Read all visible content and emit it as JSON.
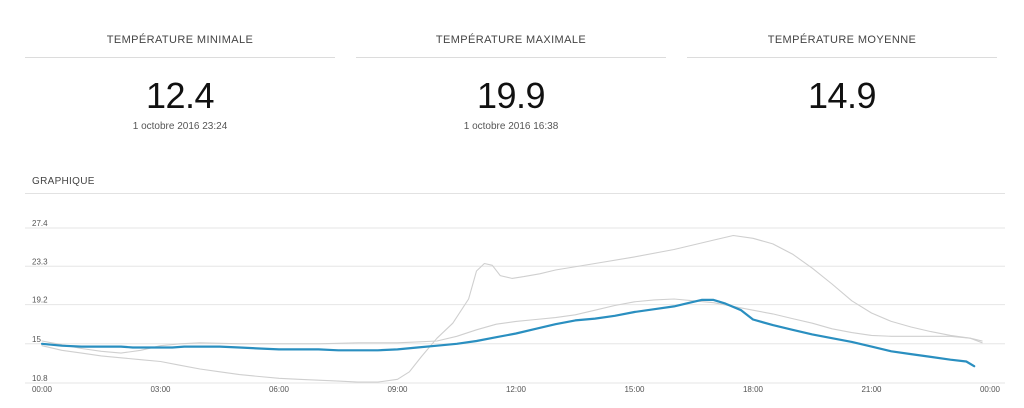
{
  "stats": [
    {
      "label": "TEMPÉRATURE MINIMALE",
      "value": "12.4",
      "date": "1 octobre 2016 23:24"
    },
    {
      "label": "TEMPÉRATURE MAXIMALE",
      "value": "19.9",
      "date": "1 octobre 2016 16:38"
    },
    {
      "label": "TEMPÉRATURE MOYENNE",
      "value": "14.9",
      "date": ""
    }
  ],
  "chart_section": {
    "title": "GRAPHIQUE"
  },
  "chart_data": {
    "type": "line",
    "ylim": [
      10.8,
      27.4
    ],
    "y_ticks": [
      "10.8",
      "15",
      "19.2",
      "23.3",
      "27.4"
    ],
    "x_ticks": [
      "00:00",
      "03:00",
      "06:00",
      "09:00",
      "12:00",
      "15:00",
      "18:00",
      "21:00",
      "00:00"
    ],
    "grid": true,
    "colors": {
      "primary": "#2a8fc0",
      "secondary": "#cfcfcf"
    },
    "series": [
      {
        "role": "current",
        "points": [
          [
            0.0,
            15.0
          ],
          [
            0.5,
            14.8
          ],
          [
            1.0,
            14.7
          ],
          [
            1.5,
            14.7
          ],
          [
            2.0,
            14.7
          ],
          [
            2.3,
            14.6
          ],
          [
            2.8,
            14.6
          ],
          [
            3.3,
            14.6
          ],
          [
            3.6,
            14.7
          ],
          [
            4.0,
            14.7
          ],
          [
            4.5,
            14.7
          ],
          [
            5.0,
            14.6
          ],
          [
            5.5,
            14.5
          ],
          [
            6.0,
            14.4
          ],
          [
            6.5,
            14.4
          ],
          [
            7.0,
            14.4
          ],
          [
            7.5,
            14.3
          ],
          [
            8.0,
            14.3
          ],
          [
            8.5,
            14.3
          ],
          [
            9.0,
            14.4
          ],
          [
            9.5,
            14.6
          ],
          [
            10.0,
            14.8
          ],
          [
            10.5,
            15.0
          ],
          [
            11.0,
            15.3
          ],
          [
            11.5,
            15.7
          ],
          [
            12.0,
            16.1
          ],
          [
            12.5,
            16.6
          ],
          [
            13.0,
            17.1
          ],
          [
            13.5,
            17.5
          ],
          [
            14.0,
            17.7
          ],
          [
            14.5,
            18.0
          ],
          [
            15.0,
            18.4
          ],
          [
            15.5,
            18.7
          ],
          [
            16.0,
            19.0
          ],
          [
            16.4,
            19.4
          ],
          [
            16.7,
            19.7
          ],
          [
            17.0,
            19.7
          ],
          [
            17.3,
            19.3
          ],
          [
            17.7,
            18.6
          ],
          [
            18.0,
            17.6
          ],
          [
            18.5,
            17.0
          ],
          [
            19.0,
            16.5
          ],
          [
            19.5,
            16.0
          ],
          [
            20.0,
            15.6
          ],
          [
            20.5,
            15.2
          ],
          [
            21.0,
            14.7
          ],
          [
            21.5,
            14.2
          ],
          [
            22.0,
            13.9
          ],
          [
            22.5,
            13.6
          ],
          [
            23.0,
            13.3
          ],
          [
            23.4,
            13.1
          ],
          [
            23.6,
            12.6
          ]
        ]
      },
      {
        "role": "max",
        "points": [
          [
            0.0,
            15.3
          ],
          [
            0.5,
            14.9
          ],
          [
            1.0,
            14.5
          ],
          [
            1.5,
            14.2
          ],
          [
            2.0,
            14.0
          ],
          [
            2.5,
            14.3
          ],
          [
            3.0,
            14.8
          ],
          [
            3.5,
            15.0
          ],
          [
            4.0,
            15.1
          ],
          [
            5.0,
            15.0
          ],
          [
            6.0,
            15.0
          ],
          [
            7.0,
            15.0
          ],
          [
            8.0,
            15.1
          ],
          [
            9.0,
            15.1
          ],
          [
            9.5,
            15.2
          ],
          [
            10.0,
            15.3
          ],
          [
            10.5,
            15.8
          ],
          [
            11.0,
            16.5
          ],
          [
            11.5,
            17.1
          ],
          [
            12.0,
            17.4
          ],
          [
            12.5,
            17.6
          ],
          [
            13.0,
            17.8
          ],
          [
            13.5,
            18.1
          ],
          [
            14.0,
            18.6
          ],
          [
            14.5,
            19.1
          ],
          [
            15.0,
            19.5
          ],
          [
            15.5,
            19.7
          ],
          [
            16.0,
            19.8
          ],
          [
            16.5,
            19.6
          ],
          [
            17.0,
            19.4
          ],
          [
            17.5,
            19.0
          ],
          [
            18.0,
            18.6
          ],
          [
            18.5,
            18.2
          ],
          [
            19.0,
            17.7
          ],
          [
            19.5,
            17.2
          ],
          [
            20.0,
            16.6
          ],
          [
            20.5,
            16.2
          ],
          [
            21.0,
            15.9
          ],
          [
            21.5,
            15.8
          ],
          [
            22.0,
            15.8
          ],
          [
            22.5,
            15.8
          ],
          [
            23.0,
            15.8
          ],
          [
            23.5,
            15.6
          ],
          [
            23.8,
            15.1
          ]
        ]
      },
      {
        "role": "min-range",
        "points": [
          [
            0.0,
            14.8
          ],
          [
            0.5,
            14.3
          ],
          [
            1.0,
            14.0
          ],
          [
            1.5,
            13.7
          ],
          [
            2.0,
            13.5
          ],
          [
            2.5,
            13.3
          ],
          [
            3.0,
            13.1
          ],
          [
            3.5,
            12.7
          ],
          [
            4.0,
            12.3
          ],
          [
            4.5,
            12.0
          ],
          [
            5.0,
            11.7
          ],
          [
            5.5,
            11.5
          ],
          [
            6.0,
            11.3
          ],
          [
            6.5,
            11.2
          ],
          [
            7.0,
            11.1
          ],
          [
            7.5,
            11.0
          ],
          [
            8.0,
            10.9
          ],
          [
            8.5,
            10.9
          ],
          [
            9.0,
            11.2
          ],
          [
            9.3,
            12.0
          ],
          [
            9.6,
            13.6
          ],
          [
            10.0,
            15.6
          ],
          [
            10.4,
            17.2
          ],
          [
            10.8,
            19.8
          ],
          [
            11.0,
            22.8
          ],
          [
            11.2,
            23.6
          ],
          [
            11.4,
            23.4
          ],
          [
            11.6,
            22.3
          ],
          [
            11.9,
            22.0
          ],
          [
            12.2,
            22.2
          ],
          [
            12.6,
            22.5
          ],
          [
            13.0,
            22.9
          ],
          [
            14.0,
            23.6
          ],
          [
            15.0,
            24.3
          ],
          [
            16.0,
            25.1
          ],
          [
            17.0,
            26.1
          ],
          [
            17.5,
            26.6
          ],
          [
            18.0,
            26.3
          ],
          [
            18.5,
            25.7
          ],
          [
            19.0,
            24.6
          ],
          [
            19.5,
            23.1
          ],
          [
            20.0,
            21.4
          ],
          [
            20.5,
            19.6
          ],
          [
            21.0,
            18.3
          ],
          [
            21.5,
            17.4
          ],
          [
            22.0,
            16.8
          ],
          [
            22.5,
            16.3
          ],
          [
            23.0,
            15.9
          ],
          [
            23.5,
            15.6
          ],
          [
            23.8,
            15.3
          ]
        ]
      }
    ]
  }
}
